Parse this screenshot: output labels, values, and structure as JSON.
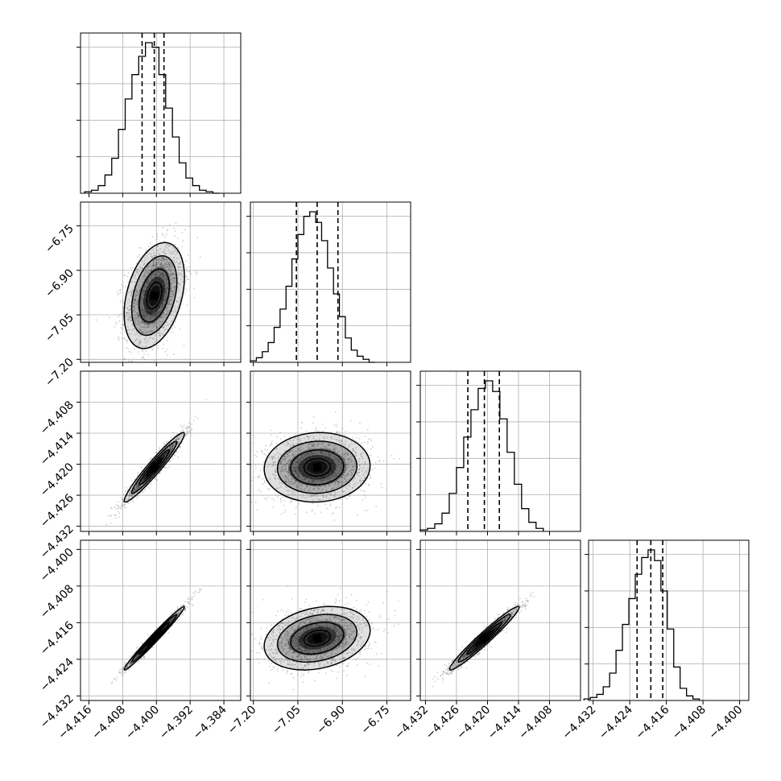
{
  "chart_data": {
    "type": "corner",
    "grid": true,
    "axes": {
      "p0": {
        "lim": [
          -4.418,
          -4.38
        ],
        "ticks": [
          -4.416,
          -4.408,
          -4.4,
          -4.392,
          -4.384
        ],
        "tick_labels": [
          "−4.416",
          "−4.408",
          "−4.400",
          "−4.392",
          "−4.384"
        ]
      },
      "p1": {
        "lim": [
          -7.21,
          -6.67
        ],
        "ticks": [
          -7.2,
          -7.05,
          -6.9,
          -6.75
        ],
        "tick_labels": [
          "−7.20",
          "−7.05",
          "−6.90",
          "−6.75"
        ]
      },
      "p2": {
        "lim": [
          -4.433,
          -4.402
        ],
        "ticks": [
          -4.432,
          -4.426,
          -4.42,
          -4.414,
          -4.408
        ],
        "tick_labels": [
          "−4.432",
          "−4.426",
          "−4.420",
          "−4.414",
          "−4.408"
        ]
      },
      "p3": {
        "lim": [
          -4.433,
          -4.398
        ],
        "ticks": [
          -4.432,
          -4.424,
          -4.416,
          -4.408,
          -4.4
        ],
        "tick_labels": [
          "−4.432",
          "−4.424",
          "−4.416",
          "−4.408",
          "−4.400"
        ]
      }
    },
    "histograms": [
      {
        "param": "p0",
        "quantiles": [
          -4.4034,
          -4.4005,
          -4.3982
        ],
        "bins": [
          -4.417,
          -4.4154,
          -4.4138,
          -4.4122,
          -4.4106,
          -4.409,
          -4.4074,
          -4.4058,
          -4.4042,
          -4.4026,
          -4.401,
          -4.3994,
          -4.3978,
          -4.3962,
          -4.3946,
          -4.393,
          -4.3914,
          -4.3898,
          -4.3882,
          -4.3866,
          -4.385
        ],
        "counts": [
          0.01,
          0.02,
          0.05,
          0.12,
          0.23,
          0.42,
          0.62,
          0.78,
          0.9,
          0.99,
          0.96,
          0.78,
          0.56,
          0.37,
          0.2,
          0.1,
          0.05,
          0.02,
          0.01,
          0.0
        ]
      },
      {
        "param": "p1",
        "quantiles": [
          -7.055,
          -6.985,
          -6.915
        ],
        "bins": [
          -7.21,
          -7.19,
          -7.17,
          -7.15,
          -7.13,
          -7.11,
          -7.09,
          -7.07,
          -7.05,
          -7.03,
          -7.01,
          -6.99,
          -6.97,
          -6.95,
          -6.93,
          -6.91,
          -6.89,
          -6.87,
          -6.85,
          -6.83,
          -6.81,
          -6.79
        ],
        "counts": [
          0.01,
          0.03,
          0.07,
          0.13,
          0.23,
          0.35,
          0.5,
          0.68,
          0.84,
          0.96,
          0.99,
          0.92,
          0.8,
          0.62,
          0.45,
          0.3,
          0.16,
          0.08,
          0.04,
          0.02,
          0.0
        ]
      },
      {
        "param": "p2",
        "quantiles": [
          -4.4238,
          -4.4206,
          -4.4177
        ],
        "bins": [
          -4.433,
          -4.4316,
          -4.4302,
          -4.4288,
          -4.4274,
          -4.426,
          -4.4246,
          -4.4232,
          -4.4218,
          -4.4204,
          -4.419,
          -4.4176,
          -4.4162,
          -4.4148,
          -4.4134,
          -4.412,
          -4.4106,
          -4.4092
        ],
        "counts": [
          0.01,
          0.02,
          0.05,
          0.12,
          0.25,
          0.42,
          0.62,
          0.8,
          0.94,
          0.99,
          0.92,
          0.74,
          0.52,
          0.31,
          0.15,
          0.06,
          0.02
        ]
      },
      {
        "param": "p3",
        "quantiles": [
          -4.4224,
          -4.4194,
          -4.4168
        ],
        "bins": [
          -4.434,
          -4.4326,
          -4.4312,
          -4.4298,
          -4.4284,
          -4.427,
          -4.4256,
          -4.4242,
          -4.4228,
          -4.4214,
          -4.42,
          -4.4186,
          -4.4172,
          -4.4158,
          -4.4144,
          -4.413,
          -4.4116,
          -4.4102,
          -4.4088
        ],
        "counts": [
          0.01,
          0.02,
          0.04,
          0.09,
          0.18,
          0.33,
          0.5,
          0.67,
          0.83,
          0.94,
          0.99,
          0.92,
          0.72,
          0.47,
          0.22,
          0.08,
          0.03,
          0.01
        ]
      }
    ],
    "density": [
      {
        "x": "p0",
        "y": "p1",
        "center": [
          -4.4005,
          -6.985
        ],
        "sx": 0.0034,
        "sy": 0.085,
        "rho": 0.35
      },
      {
        "x": "p0",
        "y": "p2",
        "center": [
          -4.4005,
          -4.4206
        ],
        "sx": 0.0034,
        "sy": 0.0032,
        "rho": 0.96
      },
      {
        "x": "p1",
        "y": "p2",
        "center": [
          -6.985,
          -4.4206
        ],
        "sx": 0.085,
        "sy": 0.0032,
        "rho": 0.05
      },
      {
        "x": "p0",
        "y": "p3",
        "center": [
          -4.4005,
          -4.4194
        ],
        "sx": 0.0034,
        "sy": 0.0033,
        "rho": 0.985
      },
      {
        "x": "p1",
        "y": "p3",
        "center": [
          -6.985,
          -4.4194
        ],
        "sx": 0.085,
        "sy": 0.0033,
        "rho": 0.25
      },
      {
        "x": "p2",
        "y": "p3",
        "center": [
          -4.4206,
          -4.4194
        ],
        "sx": 0.0032,
        "sy": 0.0033,
        "rho": 0.97
      }
    ],
    "contour_levels_sigma": [
      0.5,
      1.0,
      1.5,
      2.0
    ],
    "colors": {
      "hist": "#000000",
      "points": "#555555",
      "contour": "#000000",
      "grid": "#b0b0b0",
      "frame": "#000000"
    }
  }
}
